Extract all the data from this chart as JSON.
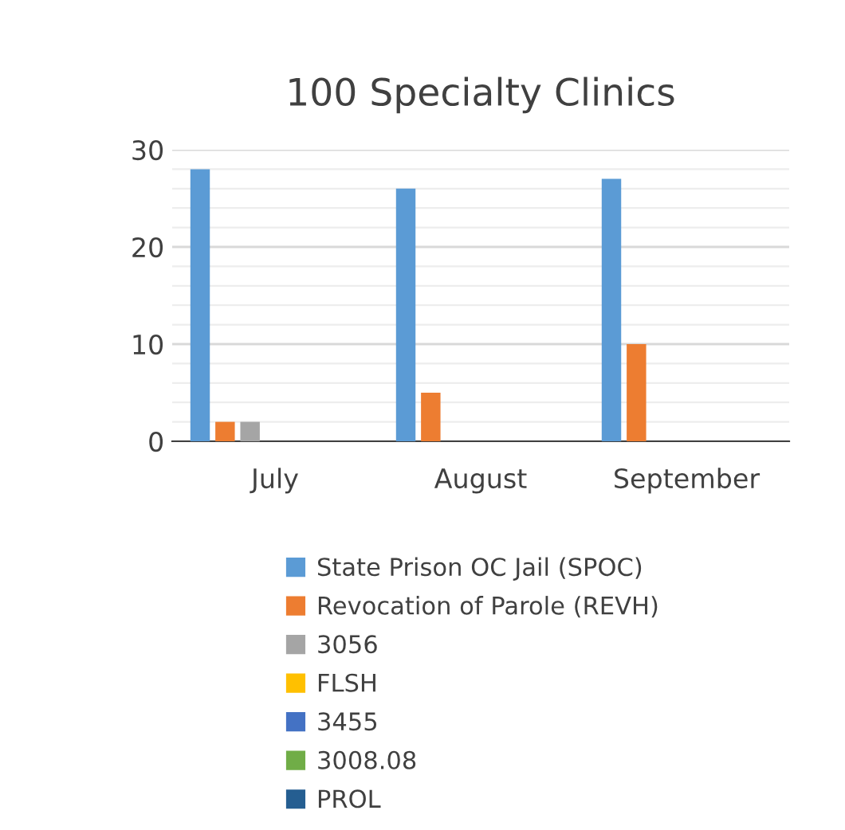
{
  "chart_data": {
    "type": "bar",
    "title": "100 Specialty Clinics",
    "categories": [
      "July",
      "August",
      "September"
    ],
    "series": [
      {
        "name": "State Prison OC Jail (SPOC)",
        "color": "#5b9bd5",
        "values": [
          28,
          26,
          27
        ]
      },
      {
        "name": "Revocation of Parole (REVH)",
        "color": "#ed7d31",
        "values": [
          2,
          5,
          10
        ]
      },
      {
        "name": "3056",
        "color": "#a5a5a5",
        "values": [
          2,
          0,
          0
        ]
      },
      {
        "name": "FLSH",
        "color": "#ffc000",
        "values": [
          0,
          0,
          0
        ]
      },
      {
        "name": "3455",
        "color": "#4472c4",
        "values": [
          0,
          0,
          0
        ]
      },
      {
        "name": "3008.08",
        "color": "#70ad47",
        "values": [
          0,
          0,
          0
        ]
      },
      {
        "name": "PROL",
        "color": "#255e91",
        "values": [
          0,
          0,
          0
        ]
      }
    ],
    "ylim": [
      0,
      30
    ],
    "yticks": [
      0,
      {
        "value": 2,
        "label": null
      },
      {
        "value": 4,
        "label": null
      },
      {
        "value": 6,
        "label": null
      },
      {
        "value": 8,
        "label": null
      },
      10,
      {
        "value": 12,
        "label": null
      },
      {
        "value": 14,
        "label": null
      },
      {
        "value": 16,
        "label": null
      },
      {
        "value": 18,
        "label": null
      },
      20,
      {
        "value": 22,
        "label": null
      },
      {
        "value": 24,
        "label": null
      },
      {
        "value": 26,
        "label": null
      },
      {
        "value": 28,
        "label": null
      },
      30
    ],
    "grid": "y",
    "legend": "bottom"
  }
}
